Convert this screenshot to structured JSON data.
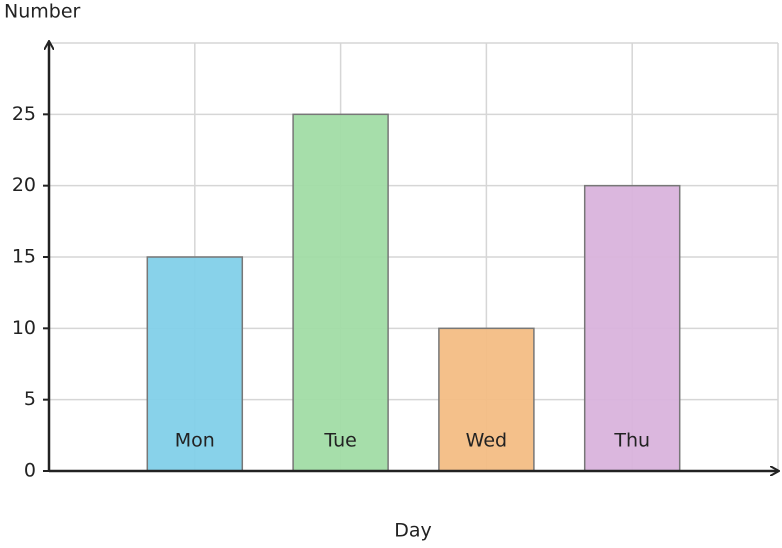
{
  "chart_data": {
    "type": "bar",
    "x_label": "Day",
    "y_label": "Number",
    "categories": [
      "Mon",
      "Tue",
      "Wed",
      "Thu"
    ],
    "values": [
      15,
      25,
      10,
      20
    ],
    "colors": [
      "#82d0e9",
      "#a1dca5",
      "#f3bd84",
      "#d9b3dc"
    ],
    "ylim": [
      0,
      30
    ],
    "yticks": [
      0,
      5,
      10,
      15,
      20,
      25
    ],
    "grid": true
  }
}
